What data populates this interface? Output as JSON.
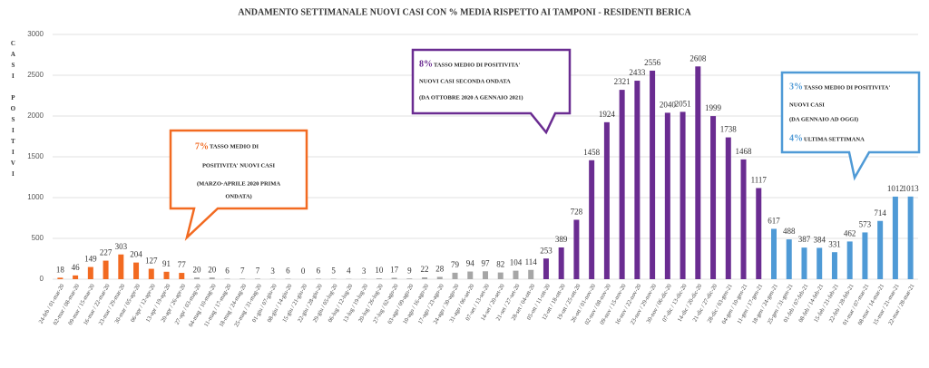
{
  "chart_data": {
    "type": "bar",
    "title": "ANDAMENTO SETTIMANALE NUOVI CASI CON % MEDIA RISPETTO AI TAMPONI - RESIDENTI BERICA",
    "y_label": "CASI POSITIVI",
    "categories": [
      "24-feb / 01-mar-20",
      "02-mar / 08-mar-20",
      "09-mar / 15-mar-20",
      "16-mar / 22-mar-20",
      "23-mar / 29-mar-20",
      "30-mar / 05-apr-20",
      "06-apr / 12-apr-20",
      "13-apr / 19-apr-20",
      "20-apr / 26-apr-20",
      "27-apr / 03-mag-20",
      "04-mag / 10-mag-20",
      "11-mag / 17-mag-20",
      "18-mag / 24-mag-20",
      "25-mag / 31-mag-20",
      "01-giu / 07-giu-20",
      "08-giu / 14-giu-20",
      "15-giu / 21-giu-20",
      "22-giu / 28-giu-20",
      "29-giu / 05-lug-20",
      "06-lug / 12-lug-20",
      "13-lug / 19-lug-20",
      "20-lug / 26-lug-20",
      "27-lug / 02-ago-20",
      "03-ago / 09-ago-20",
      "10-ago / 16-ago-20",
      "17-ago / 23-ago-20",
      "24-ago / 30-ago-20",
      "31-ago / 06-set-20",
      "07-set / 13-set-20",
      "14-set / 20-set-20",
      "21-set / 27-set-20",
      "28-set / 04-ott-20",
      "05-ott / 11-ott-20",
      "12-ott / 18-ott-20",
      "19-ott / 25-ott-20",
      "26-ott / 01-nov-20",
      "02-nov / 08-nov-20",
      "09-nov / 15-nov-20",
      "16-nov / 22-nov-20",
      "23-nov / 29-nov-20",
      "30-nov / 06-dic-20",
      "07-dic / 13-dic-20",
      "14-dic / 20-dic-20",
      "21-dic / 27-dic-20",
      "28-dic / 03-gen-21",
      "04-gen / 10-gen-21",
      "11-gen / 17-gen-21",
      "18-gen / 24-gen-21",
      "25-gen / 31-gen-21",
      "01-feb / 07-feb-21",
      "08-feb / 14-feb-21",
      "15-feb / 21-feb-21",
      "22-feb / 28-feb-21",
      "01-mar / 07-mar-21",
      "08-mar / 14-mar-21",
      "15-mar / 21-mar-21",
      "22-mar / 28-mar-21"
    ],
    "values": [
      18,
      46,
      149,
      227,
      303,
      204,
      127,
      91,
      77,
      20,
      20,
      6,
      7,
      7,
      3,
      6,
      0,
      6,
      5,
      4,
      3,
      10,
      17,
      9,
      22,
      28,
      79,
      94,
      97,
      82,
      104,
      114,
      253,
      389,
      728,
      1458,
      1924,
      2321,
      2433,
      2556,
      2040,
      2051,
      2608,
      1999,
      1738,
      1468,
      1117,
      617,
      488,
      387,
      384,
      331,
      462,
      573,
      714,
      1012,
      1013
    ],
    "colors": [
      "#f26a21",
      "#f26a21",
      "#f26a21",
      "#f26a21",
      "#f26a21",
      "#f26a21",
      "#f26a21",
      "#f26a21",
      "#f26a21",
      "#a6a6a6",
      "#a6a6a6",
      "#a6a6a6",
      "#a6a6a6",
      "#a6a6a6",
      "#a6a6a6",
      "#a6a6a6",
      "#a6a6a6",
      "#a6a6a6",
      "#a6a6a6",
      "#a6a6a6",
      "#a6a6a6",
      "#a6a6a6",
      "#a6a6a6",
      "#a6a6a6",
      "#a6a6a6",
      "#a6a6a6",
      "#a6a6a6",
      "#a6a6a6",
      "#a6a6a6",
      "#a6a6a6",
      "#a6a6a6",
      "#a6a6a6",
      "#6a2c91",
      "#6a2c91",
      "#6a2c91",
      "#6a2c91",
      "#6a2c91",
      "#6a2c91",
      "#6a2c91",
      "#6a2c91",
      "#6a2c91",
      "#6a2c91",
      "#6a2c91",
      "#6a2c91",
      "#6a2c91",
      "#6a2c91",
      "#6a2c91",
      "#4f9ad6",
      "#4f9ad6",
      "#4f9ad6",
      "#4f9ad6",
      "#4f9ad6",
      "#4f9ad6",
      "#4f9ad6",
      "#4f9ad6",
      "#4f9ad6",
      "#4f9ad6"
    ],
    "ylim": [
      0,
      3000
    ],
    "yticks": [
      0,
      500,
      1000,
      1500,
      2000,
      2500,
      3000
    ],
    "grid": true,
    "annotations": [
      {
        "pct": "7%",
        "lines": [
          "TASSO MEDIO DI",
          "POSITIVITA' NUOVI CASI",
          "(MARZO-APRILE 2020 PRIMA",
          "ONDATA)"
        ]
      },
      {
        "pct": "8%",
        "lines": [
          "TASSO MEDIO DI POSITIVITA'",
          "NUOVI CASI SECONDA ONDATA",
          "(DA OTTOBRE 2020 A GENNAIO 2021)"
        ]
      },
      {
        "pct": "3%",
        "lines": [
          "TASSO MEDIO DI POSITIVITA'",
          "NUOVI CASI",
          "(DA GENNAIO AD OGGI)"
        ],
        "pct2": "4%",
        "line2": "ULTIMA SETTIMANA"
      }
    ]
  }
}
